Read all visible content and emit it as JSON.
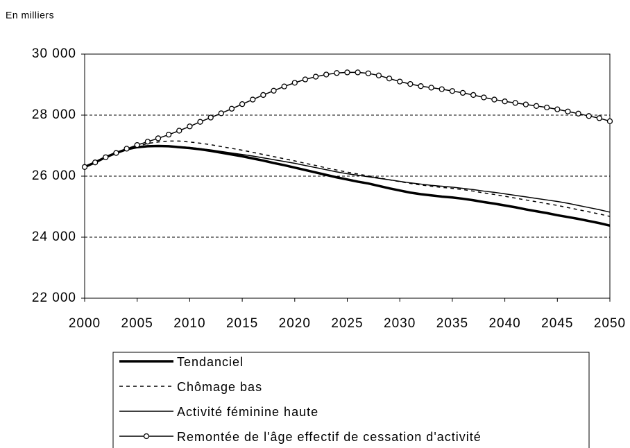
{
  "chart_data": {
    "type": "line",
    "y_label": "En milliers",
    "x": [
      2000,
      2001,
      2002,
      2003,
      2004,
      2005,
      2006,
      2007,
      2008,
      2009,
      2010,
      2011,
      2012,
      2013,
      2014,
      2015,
      2016,
      2017,
      2018,
      2019,
      2020,
      2021,
      2022,
      2023,
      2024,
      2025,
      2026,
      2027,
      2028,
      2029,
      2030,
      2031,
      2032,
      2033,
      2034,
      2035,
      2036,
      2037,
      2038,
      2039,
      2040,
      2041,
      2042,
      2043,
      2044,
      2045,
      2046,
      2047,
      2048,
      2049,
      2050
    ],
    "xlim": [
      2000,
      2050
    ],
    "xticks": [
      2000,
      2005,
      2010,
      2015,
      2020,
      2025,
      2030,
      2035,
      2040,
      2045,
      2050
    ],
    "ylim": [
      22000,
      30000
    ],
    "yticks": [
      {
        "value": 22000,
        "label": "22 000"
      },
      {
        "value": 24000,
        "label": "24 000"
      },
      {
        "value": 26000,
        "label": "26 000"
      },
      {
        "value": 28000,
        "label": "28 000"
      },
      {
        "value": 30000,
        "label": "30 000"
      }
    ],
    "grid": true,
    "legend": "bottom",
    "series": [
      {
        "name": "Tendanciel",
        "color": "#000000",
        "line_width": 3.5,
        "dash": false,
        "marker": false,
        "values": [
          26300,
          26450,
          26620,
          26760,
          26880,
          26950,
          26980,
          26990,
          26980,
          26950,
          26920,
          26880,
          26830,
          26770,
          26710,
          26650,
          26580,
          26510,
          26430,
          26360,
          26280,
          26200,
          26120,
          26040,
          25960,
          25890,
          25820,
          25760,
          25680,
          25600,
          25530,
          25460,
          25410,
          25370,
          25330,
          25300,
          25260,
          25210,
          25150,
          25100,
          25040,
          24980,
          24910,
          24850,
          24790,
          24720,
          24660,
          24600,
          24530,
          24460,
          24380
        ]
      },
      {
        "name": "Chômage bas",
        "color": "#000000",
        "line_width": 1.5,
        "dash": true,
        "marker": false,
        "values": [
          26300,
          26450,
          26620,
          26760,
          26890,
          26980,
          27070,
          27120,
          27150,
          27150,
          27120,
          27080,
          27030,
          26970,
          26910,
          26850,
          26780,
          26710,
          26640,
          26570,
          26500,
          26420,
          26350,
          26270,
          26200,
          26130,
          26070,
          26010,
          25950,
          25880,
          25820,
          25760,
          25710,
          25670,
          25630,
          25600,
          25560,
          25510,
          25450,
          25400,
          25340,
          25280,
          25220,
          25160,
          25100,
          25040,
          24970,
          24900,
          24830,
          24760,
          24680
        ]
      },
      {
        "name": "Activité féminine haute",
        "color": "#000000",
        "line_width": 1.5,
        "dash": false,
        "marker": false,
        "values": [
          26300,
          26450,
          26620,
          26760,
          26880,
          26950,
          26990,
          27000,
          26990,
          26970,
          26940,
          26900,
          26860,
          26810,
          26760,
          26710,
          26660,
          26600,
          26540,
          26480,
          26420,
          26350,
          26280,
          26210,
          26140,
          26080,
          26030,
          25980,
          25930,
          25880,
          25830,
          25780,
          25740,
          25700,
          25670,
          25640,
          25600,
          25560,
          25510,
          25470,
          25420,
          25370,
          25320,
          25270,
          25220,
          25170,
          25110,
          25040,
          24970,
          24900,
          24820
        ]
      },
      {
        "name": "Remontée de l'âge effectif de cessation d'activité",
        "color": "#000000",
        "line_width": 1.5,
        "dash": false,
        "marker": true,
        "values": [
          26300,
          26450,
          26620,
          26760,
          26900,
          27020,
          27130,
          27240,
          27360,
          27490,
          27630,
          27780,
          27920,
          28060,
          28210,
          28360,
          28510,
          28660,
          28800,
          28940,
          29060,
          29170,
          29260,
          29330,
          29380,
          29400,
          29400,
          29370,
          29300,
          29200,
          29100,
          29020,
          28950,
          28900,
          28850,
          28790,
          28730,
          28660,
          28580,
          28510,
          28450,
          28400,
          28350,
          28300,
          28250,
          28190,
          28120,
          28050,
          27970,
          27900,
          27800
        ]
      }
    ]
  }
}
